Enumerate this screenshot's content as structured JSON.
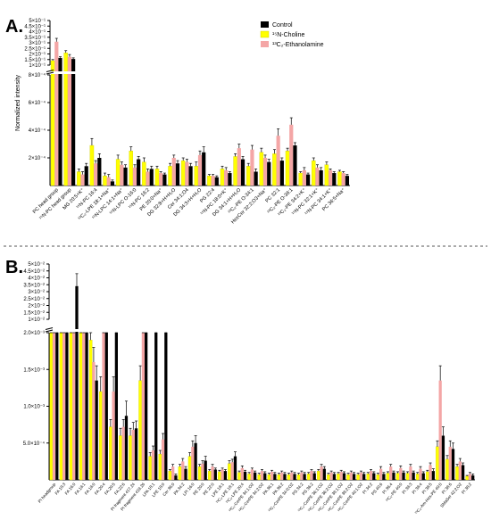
{
  "chart_data": [
    {
      "panel": "A.",
      "type": "bar",
      "ylabel": "Normalized intensity",
      "y_axis": {
        "broken": true,
        "lower": {
          "range": [
            0,
            0.0008
          ],
          "ticks": [
            {
              "v": 0.0002,
              "label": "2×10⁻⁴"
            },
            {
              "v": 0.0004,
              "label": "4×10⁻⁴"
            },
            {
              "v": 0.0006,
              "label": "6×10⁻⁴"
            },
            {
              "v": 0.0008,
              "label": "8×10⁻⁴"
            }
          ]
        },
        "upper": {
          "range": [
            0.1,
            0.5
          ],
          "ticks": [
            {
              "v": 0.1,
              "label": "1×10⁻¹"
            },
            {
              "v": 0.15,
              "label": "1.5×10⁻¹"
            },
            {
              "v": 0.2,
              "label": "2×10⁻¹"
            },
            {
              "v": 0.25,
              "label": "2.5×10⁻¹"
            },
            {
              "v": 0.3,
              "label": "3×10⁻¹"
            },
            {
              "v": 0.35,
              "label": "3.5×10⁻¹"
            },
            {
              "v": 0.4,
              "label": "4×10⁻¹"
            },
            {
              "v": 0.45,
              "label": "4.5×10⁻¹"
            },
            {
              "v": 0.5,
              "label": "5×10⁻¹"
            }
          ]
        }
      },
      "legend": {
        "placement": "top-right",
        "entries": [
          {
            "label": "Control",
            "color": "#000000"
          },
          {
            "label": "¹⁵N-Choline",
            "color": "#ffff00"
          },
          {
            "label": "¹³C₂-Ethanolamine",
            "color": "#f4a6a6"
          }
        ]
      },
      "categories": [
        "PC head group",
        "¹⁵N-PC head group",
        "MG 20:5+K⁺",
        "¹⁵N-PC 16:4",
        "¹³C₂-LPE 18:1+Na⁺",
        "¹⁵N-LPC 14:1+Na⁺",
        "¹⁵N-LPC O-16:0",
        "¹⁵N-PC 16:2",
        "PE 20:0+Na⁺",
        "DG 32:8+H+H₂O",
        "Cer 34:1;O4",
        "DG 34:3+H+H₂O",
        "PG 22:4",
        "¹⁵N-PC 18:0+K⁺",
        "DG 34:1+H+H₂O",
        "¹³C₂-PE O-34:1",
        "HexCer 32:2;O3+Na⁺",
        "PC 32:1",
        "¹³C₂-PE O-36:1",
        "¹³C₂-PE 34:2+K⁺",
        "¹⁵N-PC 32:1+K⁺",
        "¹⁵N-PC 34:1+K⁺",
        "PC 36:5+Na⁺"
      ],
      "series": [
        {
          "name": "Control",
          "color": "#000000",
          "values": [
            0.165,
            0.155,
            0.00014,
            0.0002,
            3e-05,
            0.00013,
            0.00019,
            0.00012,
            8e-05,
            0.00016,
            0.00014,
            0.00024,
            6e-05,
            9e-05,
            0.00019,
            0.0001,
            0.00017,
            0.00018,
            0.00029,
            8e-05,
            0.00011,
            9e-05,
            7e-05
          ],
          "errors": [
            0.01,
            0.01,
            2e-05,
            3e-05,
            1e-05,
            2e-05,
            2e-05,
            2e-05,
            1e-05,
            2e-05,
            2e-05,
            4e-05,
            1e-05,
            1e-05,
            2e-05,
            2e-05,
            2e-05,
            2e-05,
            2e-05,
            1e-05,
            2e-05,
            1e-05,
            1e-05
          ]
        },
        {
          "name": "¹⁵N-Choline",
          "color": "#ffff00",
          "values": [
            0.14,
            0.21,
            0.0001,
            0.00029,
            7e-05,
            0.00019,
            0.00025,
            0.00017,
            0.00012,
            0.00014,
            0.00018,
            0.00014,
            7e-05,
            0.00012,
            0.00021,
            0.00014,
            0.00024,
            0.00023,
            0.00025,
            9e-05,
            0.00018,
            0.00015,
            0.0001
          ],
          "errors": [
            0.01,
            0.02,
            2e-05,
            5e-05,
            2e-05,
            3e-05,
            3e-05,
            3e-05,
            2e-05,
            2e-05,
            2e-05,
            3e-05,
            1e-05,
            2e-05,
            2e-05,
            2e-05,
            3e-05,
            3e-05,
            2e-05,
            1e-05,
            2e-05,
            2e-05,
            1e-05
          ]
        },
        {
          "name": "¹³C₂-Ethanolamine",
          "color": "#f4a6a6",
          "values": [
            0.31,
            0.175,
            8e-05,
            0.00016,
            6e-05,
            0.00015,
            0.00013,
            0.0001,
            9e-05,
            0.0002,
            0.00017,
            0.00022,
            7e-05,
            0.00011,
            0.00027,
            0.00026,
            0.0002,
            0.00036,
            0.00044,
            0.00011,
            0.00013,
            0.00011,
            9e-05
          ],
          "errors": [
            0.03,
            0.02,
            2e-05,
            2e-05,
            2e-05,
            2e-05,
            2e-05,
            2e-05,
            1e-05,
            2e-05,
            2e-05,
            3e-05,
            1e-05,
            2e-05,
            3e-05,
            3e-05,
            2e-05,
            5e-05,
            5e-05,
            2e-05,
            2e-05,
            1e-05,
            1e-05
          ]
        }
      ]
    },
    {
      "panel": "B.",
      "type": "bar",
      "ylabel": "",
      "y_axis": {
        "broken": true,
        "lower": {
          "range": [
            0,
            0.002
          ],
          "ticks": [
            {
              "v": 0.0005,
              "label": "5.0×10⁻⁴"
            },
            {
              "v": 0.001,
              "label": "1.0×10⁻³"
            },
            {
              "v": 0.0015,
              "label": "1.5×10⁻³"
            },
            {
              "v": 0.002,
              "label": "2.0×10⁻³"
            }
          ]
        },
        "upper": {
          "range": [
            0.01,
            0.05
          ],
          "ticks": [
            {
              "v": 0.01,
              "label": "1×10⁻²"
            },
            {
              "v": 0.015,
              "label": "1.5×10⁻²"
            },
            {
              "v": 0.02,
              "label": "2×10⁻²"
            },
            {
              "v": 0.025,
              "label": "2.5×10⁻²"
            },
            {
              "v": 0.03,
              "label": "3×10⁻²"
            },
            {
              "v": 0.035,
              "label": "3.5×10⁻²"
            },
            {
              "v": 0.04,
              "label": "4×10⁻²"
            },
            {
              "v": 0.045,
              "label": "4.5×10⁻²"
            },
            {
              "v": 0.05,
              "label": "5×10⁻²"
            }
          ]
        }
      },
      "categories": [
        "PI headgroup",
        "FA 18:3",
        "FA 16:0",
        "FA 18:1",
        "FA 18:0",
        "FA 20:4",
        "FA 20:5",
        "FA 22:6",
        "PI fragment 417.24",
        "PI fragment 419.26",
        "LPA 18:1",
        "LPE 18:0",
        "Cer 36:0",
        "PA 34:2",
        "LPI 16:0",
        "PE 20:0",
        "PE 22:0",
        "LPE 18:1",
        "¹³C₂-LPE 18:1",
        "¹³C₂-LPE 20:4",
        "¹³C₂-CerPE 34:1;O2",
        "¹³C₂-CerPE 34:2;O2",
        "PA 36:1",
        "PA 36:2",
        "¹³C₂-CerPE 34:0;O2",
        "PS 34:2",
        "PS 36:2",
        "¹³C₂-CerPE 36:1;O2",
        "¹³C₂-CerPE 36:2;O2",
        "¹³C₂-CerPE 38:1;O2",
        "¹³C₂-CerPE 38:2;O2",
        "¹³C₂-CerPE 40:1;O2",
        "PI 34:2",
        "PS 40:6",
        "PI 36:4",
        "¹³C₂-PE 40:0",
        "PI 38:3",
        "PI 38:4",
        "PI 38:5",
        "¹³C₂-Am-Hex-PE 40:0",
        "PI 38:6",
        "SMaSer 42:2;O2",
        "PI 38:2"
      ],
      "series": [
        {
          "name": "Control",
          "color": "#000000",
          "values": [
            0.0085,
            0.0075,
            0.034,
            0.0092,
            0.00135,
            0.0026,
            0.0022,
            0.00087,
            0.0007,
            0.0084,
            0.0089,
            0.0091,
            6e-05,
            0.00015,
            0.0005,
            0.00026,
            0.00014,
            0.00012,
            0.00032,
            0.00011,
            0.0001,
            9e-05,
            8e-05,
            8e-05,
            8e-05,
            8e-05,
            9e-05,
            0.00015,
            8e-05,
            9e-05,
            8e-05,
            8e-05,
            9e-05,
            8e-05,
            0.0001,
            0.0001,
            0.0001,
            9e-05,
            0.00012,
            0.0006,
            0.00042,
            0.0002,
            6e-05
          ],
          "errors": [
            0.0006,
            0.0005,
            0.009,
            0.0008,
            0.0002,
            0.0004,
            0.0004,
            0.0002,
            0.0001,
            0.0004,
            0.0004,
            0.0004,
            2e-05,
            3e-05,
            0.0001,
            6e-05,
            2e-05,
            2e-05,
            6e-05,
            2e-05,
            2e-05,
            2e-05,
            2e-05,
            2e-05,
            2e-05,
            2e-05,
            2e-05,
            3e-05,
            2e-05,
            2e-05,
            2e-05,
            2e-05,
            2e-05,
            2e-05,
            2e-05,
            2e-05,
            2e-05,
            2e-05,
            3e-05,
            0.00012,
            8e-05,
            3e-05,
            2e-05
          ]
        },
        {
          "name": "¹⁵N-Choline",
          "color": "#ffff00",
          "values": [
            0.0075,
            0.0055,
            0.0065,
            0.0085,
            0.0019,
            0.0012,
            0.00072,
            0.0006,
            0.0006,
            0.00135,
            0.00032,
            0.00035,
            0.00012,
            0.00018,
            0.00032,
            0.00018,
            0.00012,
            0.00011,
            0.00022,
            0.0001,
            8e-05,
            7e-05,
            7e-05,
            7e-05,
            7e-05,
            7e-05,
            8e-05,
            0.00012,
            7e-05,
            8e-05,
            7e-05,
            7e-05,
            8e-05,
            7e-05,
            9e-05,
            9e-05,
            9e-05,
            8e-05,
            0.00011,
            0.00045,
            0.00028,
            0.00018,
            5e-05
          ],
          "errors": [
            0.0005,
            0.0004,
            0.0005,
            0.0006,
            0.0002,
            0.0002,
            0.0001,
            0.0001,
            0.0001,
            0.0002,
            5e-05,
            5e-05,
            2e-05,
            3e-05,
            5e-05,
            3e-05,
            2e-05,
            2e-05,
            4e-05,
            2e-05,
            2e-05,
            2e-05,
            2e-05,
            2e-05,
            2e-05,
            2e-05,
            2e-05,
            2e-05,
            2e-05,
            2e-05,
            2e-05,
            2e-05,
            2e-05,
            2e-05,
            2e-05,
            2e-05,
            2e-05,
            2e-05,
            2e-05,
            8e-05,
            5e-05,
            3e-05,
            1e-05
          ]
        },
        {
          "name": "¹³C₂-Ethanolamine",
          "color": "#f4a6a6",
          "values": [
            0.0082,
            0.007,
            0.0087,
            0.0086,
            0.0016,
            0.0028,
            0.0012,
            0.00072,
            0.00068,
            0.0023,
            0.0004,
            0.00055,
            0.00018,
            0.00025,
            0.00045,
            0.00022,
            0.00018,
            0.00014,
            0.00024,
            0.00016,
            0.00014,
            0.00012,
            0.00011,
            0.0001,
            0.0001,
            0.0001,
            0.00012,
            0.00018,
            0.0001,
            0.00011,
            0.0001,
            0.0001,
            0.00012,
            0.00015,
            0.00018,
            0.00016,
            0.00018,
            0.00015,
            0.0002,
            0.00135,
            0.00045,
            0.00025,
            8e-05
          ],
          "errors": [
            0.0006,
            0.0006,
            0.0007,
            0.0007,
            0.0002,
            0.0004,
            0.0002,
            0.0001,
            0.0001,
            0.0004,
            6e-05,
            8e-05,
            3e-05,
            4e-05,
            8e-05,
            4e-05,
            3e-05,
            2e-05,
            4e-05,
            3e-05,
            2e-05,
            2e-05,
            2e-05,
            2e-05,
            2e-05,
            2e-05,
            2e-05,
            3e-05,
            2e-05,
            2e-05,
            2e-05,
            2e-05,
            2e-05,
            3e-05,
            3e-05,
            3e-05,
            3e-05,
            3e-05,
            3e-05,
            0.0002,
            8e-05,
            4e-05,
            2e-05
          ]
        }
      ]
    }
  ]
}
